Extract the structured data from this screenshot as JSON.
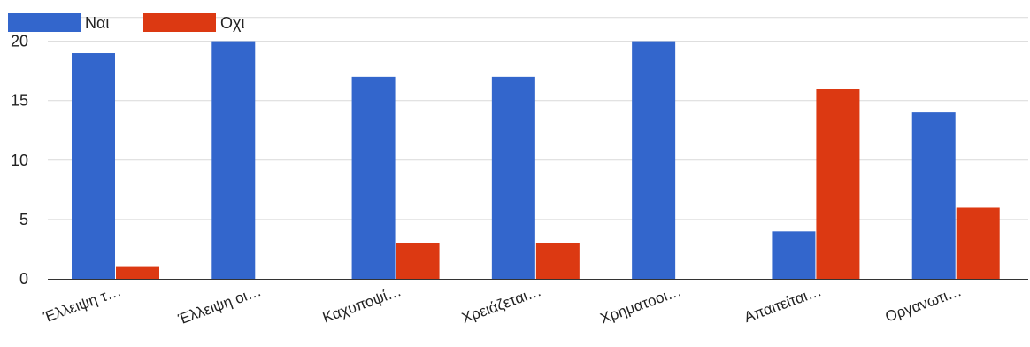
{
  "chart_data": {
    "type": "bar",
    "categories": [
      "Έλλειψη τ…",
      "Έλλειψη οι…",
      "Καχυποψί…",
      "Χρειάζεται…",
      "Χρηματοοι…",
      "Απαιτείται…",
      "Οργανωτι…"
    ],
    "series": [
      {
        "name": "Ναι",
        "color": "#3366cc",
        "values": [
          19,
          20,
          17,
          17,
          20,
          4,
          14
        ]
      },
      {
        "name": "Οχι",
        "color": "#dc3912",
        "values": [
          1,
          0,
          3,
          3,
          0,
          16,
          6
        ]
      }
    ],
    "yticks": [
      "0",
      "5",
      "10",
      "15",
      "20"
    ],
    "ylim": [
      0,
      22
    ],
    "grid": true,
    "legend_position": "top-left"
  }
}
